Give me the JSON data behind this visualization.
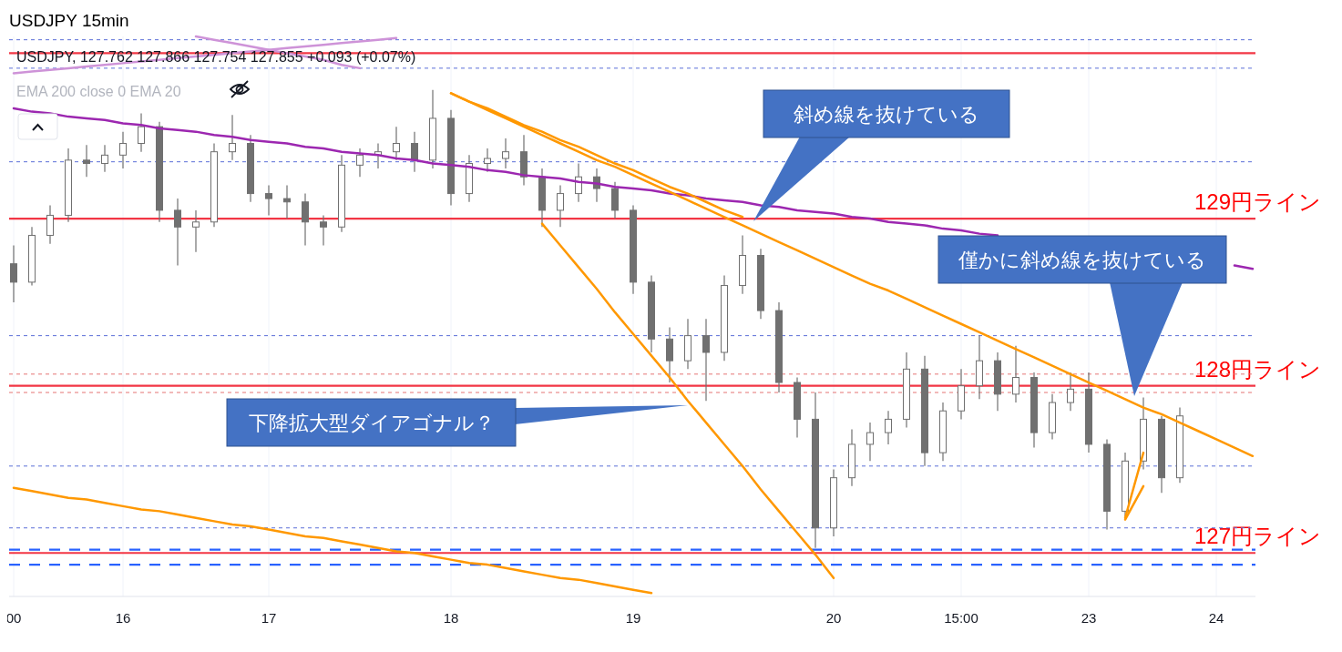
{
  "chart_data": {
    "type": "candlestick",
    "title": "USDJPY 15min",
    "subtitle": "USDJPY, 127.762 127.866 127.754 127.855 +0.093 (+0.07%)",
    "color": "#707070",
    "categories": [
      "00",
      null,
      null,
      null,
      null,
      null,
      "16",
      null,
      null,
      null,
      null,
      null,
      null,
      null,
      "17",
      null,
      null,
      null,
      null,
      null,
      null,
      null,
      null,
      null,
      "18",
      null,
      null,
      null,
      null,
      null,
      null,
      null,
      null,
      null,
      "19",
      null,
      null,
      null,
      null,
      null,
      null,
      null,
      null,
      null,
      null,
      "20",
      null,
      null,
      null,
      null,
      null,
      null,
      "15:00",
      null,
      null,
      null,
      null,
      null,
      null,
      "23",
      null,
      null,
      null,
      null,
      null,
      null,
      "24",
      null,
      null
    ],
    "ohlc": [
      [
        128.73,
        128.84,
        128.5,
        128.62
      ],
      [
        128.62,
        128.95,
        128.6,
        128.9
      ],
      [
        128.9,
        129.08,
        128.85,
        129.02
      ],
      [
        129.02,
        129.42,
        128.98,
        129.35
      ],
      [
        129.35,
        129.44,
        129.25,
        129.33
      ],
      [
        129.33,
        129.44,
        129.28,
        129.38
      ],
      [
        129.38,
        129.52,
        129.3,
        129.45
      ],
      [
        129.45,
        129.63,
        129.4,
        129.55
      ],
      [
        129.55,
        129.58,
        128.98,
        129.05
      ],
      [
        129.05,
        129.12,
        128.72,
        128.95
      ],
      [
        128.95,
        129.05,
        128.8,
        128.98
      ],
      [
        128.98,
        129.45,
        128.95,
        129.4
      ],
      [
        129.4,
        129.62,
        129.35,
        129.45
      ],
      [
        129.45,
        129.5,
        129.1,
        129.15
      ],
      [
        129.15,
        129.2,
        129.02,
        129.12
      ],
      [
        129.12,
        129.2,
        129.0,
        129.1
      ],
      [
        129.1,
        129.15,
        128.84,
        128.98
      ],
      [
        128.98,
        129.02,
        128.84,
        128.95
      ],
      [
        128.95,
        129.38,
        128.92,
        129.32
      ],
      [
        129.32,
        129.42,
        129.25,
        129.38
      ],
      [
        129.38,
        129.45,
        129.3,
        129.4
      ],
      [
        129.4,
        129.55,
        129.35,
        129.45
      ],
      [
        129.45,
        129.52,
        129.28,
        129.35
      ],
      [
        129.35,
        129.77,
        129.3,
        129.6
      ],
      [
        129.6,
        129.65,
        129.08,
        129.15
      ],
      [
        129.15,
        129.38,
        129.1,
        129.33
      ],
      [
        129.33,
        129.42,
        129.28,
        129.36
      ],
      [
        129.36,
        129.48,
        129.3,
        129.4
      ],
      [
        129.4,
        129.5,
        129.2,
        129.25
      ],
      [
        129.25,
        129.3,
        128.95,
        129.05
      ],
      [
        129.05,
        129.2,
        128.95,
        129.15
      ],
      [
        129.15,
        129.33,
        129.1,
        129.25
      ],
      [
        129.25,
        129.3,
        129.1,
        129.18
      ],
      [
        129.18,
        129.22,
        129.0,
        129.05
      ],
      [
        129.05,
        129.08,
        128.55,
        128.62
      ],
      [
        128.62,
        128.66,
        128.2,
        128.28
      ],
      [
        128.28,
        128.35,
        128.02,
        128.15
      ],
      [
        128.15,
        128.4,
        128.1,
        128.3
      ],
      [
        128.3,
        128.4,
        127.91,
        128.2
      ],
      [
        128.2,
        128.66,
        128.15,
        128.6
      ],
      [
        128.6,
        128.9,
        128.55,
        128.78
      ],
      [
        128.78,
        128.82,
        128.4,
        128.45
      ],
      [
        128.45,
        128.5,
        127.96,
        128.02
      ],
      [
        128.02,
        128.05,
        127.69,
        127.8
      ],
      [
        127.8,
        127.96,
        127.03,
        127.15
      ],
      [
        127.15,
        127.5,
        127.1,
        127.45
      ],
      [
        127.45,
        127.74,
        127.4,
        127.65
      ],
      [
        127.65,
        127.78,
        127.55,
        127.72
      ],
      [
        127.72,
        127.85,
        127.65,
        127.8
      ],
      [
        127.8,
        128.2,
        127.75,
        128.1
      ],
      [
        128.1,
        128.18,
        127.52,
        127.6
      ],
      [
        127.6,
        127.9,
        127.55,
        127.85
      ],
      [
        127.85,
        128.1,
        127.8,
        128.0
      ],
      [
        128.0,
        128.3,
        127.92,
        128.15
      ],
      [
        128.15,
        128.2,
        127.85,
        127.95
      ],
      [
        127.95,
        128.24,
        127.9,
        128.05
      ],
      [
        128.05,
        128.08,
        127.63,
        127.72
      ],
      [
        127.72,
        127.95,
        127.68,
        127.9
      ],
      [
        127.9,
        128.08,
        127.85,
        127.98
      ],
      [
        127.98,
        128.08,
        127.6,
        127.65
      ],
      [
        127.65,
        127.68,
        127.14,
        127.25
      ],
      [
        127.25,
        127.6,
        127.22,
        127.55
      ],
      [
        127.55,
        127.93,
        127.5,
        127.8
      ],
      [
        127.8,
        127.82,
        127.36,
        127.45
      ],
      [
        127.45,
        127.87,
        127.42,
        127.82
      ],
      null,
      null,
      null,
      null
    ],
    "series": [
      {
        "type": "line",
        "color": "#9c27b0",
        "values": [
          129.66,
          129.64,
          129.63,
          129.61,
          129.6,
          129.59,
          129.57,
          129.56,
          129.54,
          129.53,
          129.52,
          129.5,
          129.49,
          129.47,
          129.46,
          129.45,
          129.43,
          129.42,
          129.4,
          129.39,
          129.38,
          129.36,
          129.35,
          129.33,
          129.32,
          129.31,
          129.29,
          129.28,
          129.26,
          129.25,
          129.24,
          129.22,
          129.21,
          129.19,
          129.18,
          129.17,
          129.15,
          129.14,
          129.12,
          129.11,
          129.1,
          129.08,
          129.07,
          129.05,
          129.04,
          129.03,
          129.01,
          129.0,
          128.98,
          128.97,
          128.96,
          128.94,
          128.93,
          128.91,
          128.9,
          null,
          null,
          null,
          null,
          null,
          null,
          null,
          null,
          null,
          null,
          null,
          null,
          128.72,
          128.7
        ]
      },
      {
        "type": "line",
        "color": "#ce93d8",
        "values": [
          129.87,
          129.88,
          129.89,
          129.9,
          129.91,
          129.92,
          129.93,
          129.94,
          129.95,
          129.96,
          129.97,
          129.98,
          129.99,
          130.0,
          130.01,
          130.02,
          130.03,
          130.04,
          130.05,
          130.06,
          130.07,
          130.08,
          null,
          null,
          null,
          null,
          null,
          null,
          null,
          null,
          null,
          null,
          null,
          null,
          null,
          null,
          null,
          null,
          null,
          null,
          null,
          null,
          null,
          null,
          null,
          null,
          null,
          null,
          null,
          null,
          null,
          null,
          null,
          null,
          null,
          null,
          null,
          null,
          null,
          null,
          null,
          null,
          null,
          null,
          null,
          null,
          null,
          null,
          null
        ]
      },
      {
        "type": "line",
        "color": "#ce93d8",
        "values": [
          null,
          null,
          null,
          null,
          null,
          null,
          null,
          null,
          null,
          null,
          130.09,
          130.07,
          130.05,
          130.03,
          130.01,
          129.99,
          129.97,
          129.95,
          129.92,
          129.9,
          null,
          null,
          null,
          null,
          null,
          null,
          null,
          null,
          null,
          null,
          null,
          null,
          null,
          null,
          null,
          null,
          null,
          null,
          null,
          null,
          null,
          null,
          null,
          null,
          null,
          null,
          null,
          null,
          null,
          null,
          null,
          null,
          null,
          null,
          null,
          null,
          null,
          null,
          null,
          null,
          null,
          null,
          null,
          null,
          null,
          null,
          null,
          null,
          null
        ]
      },
      {
        "type": "line",
        "color": "#ff9800",
        "values": [
          null,
          null,
          null,
          null,
          null,
          null,
          null,
          null,
          null,
          null,
          null,
          null,
          null,
          null,
          null,
          null,
          null,
          null,
          null,
          null,
          null,
          null,
          null,
          null,
          129.75,
          129.7,
          129.65,
          129.6,
          129.55,
          129.5,
          129.45,
          129.4,
          129.35,
          129.31,
          129.26,
          129.21,
          129.16,
          129.11,
          129.06,
          129.01,
          128.96,
          128.91,
          128.86,
          128.81,
          128.76,
          128.71,
          128.66,
          128.61,
          128.57,
          128.52,
          128.47,
          128.42,
          128.37,
          128.32,
          128.27,
          128.22,
          128.17,
          128.12,
          128.07,
          128.02,
          127.97,
          127.92,
          127.87,
          127.83,
          127.78,
          127.73,
          127.68,
          127.63,
          127.58
        ]
      },
      {
        "type": "line",
        "color": "#ff9800",
        "values": [
          null,
          null,
          null,
          null,
          null,
          null,
          null,
          null,
          null,
          null,
          null,
          null,
          null,
          null,
          null,
          null,
          null,
          null,
          null,
          null,
          null,
          null,
          null,
          null,
          129.75,
          129.7,
          129.66,
          129.61,
          129.56,
          129.52,
          129.47,
          129.43,
          129.38,
          129.33,
          129.29,
          129.24,
          129.19,
          129.15,
          129.1,
          129.05,
          129.01,
          null,
          null,
          null,
          null,
          null,
          null,
          null,
          null,
          null,
          null,
          null,
          null,
          null,
          null,
          null,
          null,
          null,
          null,
          null,
          null,
          null,
          null,
          null,
          null,
          null,
          null,
          null,
          null
        ]
      },
      {
        "type": "line",
        "color": "#ff9800",
        "values": [
          null,
          null,
          null,
          null,
          null,
          null,
          null,
          null,
          null,
          null,
          null,
          null,
          null,
          null,
          null,
          null,
          null,
          null,
          null,
          null,
          null,
          null,
          null,
          null,
          null,
          null,
          null,
          null,
          null,
          128.97,
          128.84,
          128.71,
          128.58,
          128.44,
          128.31,
          128.18,
          128.05,
          127.91,
          127.78,
          127.65,
          127.52,
          127.38,
          127.25,
          127.12,
          126.99,
          126.85,
          null,
          null,
          null,
          null,
          null,
          null,
          null,
          null,
          null,
          null,
          null,
          null,
          null,
          null,
          null,
          null,
          null,
          null,
          null,
          null,
          null,
          null,
          null
        ]
      },
      {
        "type": "line",
        "color": "#ff9800",
        "values": [
          127.39,
          127.37,
          127.35,
          127.33,
          127.32,
          127.3,
          127.28,
          127.26,
          127.25,
          127.23,
          127.21,
          127.19,
          127.17,
          127.16,
          127.14,
          127.12,
          127.1,
          127.09,
          127.07,
          127.05,
          127.03,
          127.01,
          127.0,
          126.98,
          126.96,
          126.94,
          126.93,
          126.91,
          126.89,
          126.87,
          126.85,
          126.84,
          126.82,
          126.8,
          126.78,
          126.76,
          null,
          null,
          null,
          null,
          null,
          null,
          null,
          null,
          null,
          null,
          null,
          null,
          null,
          null,
          null,
          null,
          null,
          null,
          null,
          null,
          null,
          null,
          null,
          null,
          null,
          null,
          null,
          null,
          null,
          null,
          null,
          null,
          null
        ]
      },
      {
        "type": "line",
        "color": "#ff9800",
        "values": [
          null,
          null,
          null,
          null,
          null,
          null,
          null,
          null,
          null,
          null,
          null,
          null,
          null,
          null,
          null,
          null,
          null,
          null,
          null,
          null,
          null,
          null,
          null,
          null,
          null,
          null,
          null,
          null,
          null,
          null,
          null,
          null,
          null,
          null,
          null,
          null,
          null,
          null,
          null,
          null,
          null,
          null,
          null,
          null,
          null,
          null,
          null,
          null,
          null,
          null,
          null,
          null,
          null,
          null,
          null,
          null,
          null,
          null,
          null,
          null,
          null,
          127.21,
          127.6,
          null,
          null,
          null,
          null,
          null,
          null
        ]
      },
      {
        "type": "line",
        "color": "#ff9800",
        "values": [
          null,
          null,
          null,
          null,
          null,
          null,
          null,
          null,
          null,
          null,
          null,
          null,
          null,
          null,
          null,
          null,
          null,
          null,
          null,
          null,
          null,
          null,
          null,
          null,
          null,
          null,
          null,
          null,
          null,
          null,
          null,
          null,
          null,
          null,
          null,
          null,
          null,
          null,
          null,
          null,
          null,
          null,
          null,
          null,
          null,
          null,
          null,
          null,
          null,
          null,
          null,
          null,
          null,
          null,
          null,
          null,
          null,
          null,
          null,
          null,
          null,
          127.2,
          127.4,
          null,
          null,
          null,
          null,
          null,
          null
        ]
      }
    ],
    "ref_lines": [
      {
        "axis": "y",
        "value": 129,
        "label": "129円ライン",
        "color": "#f23645"
      },
      {
        "axis": "y",
        "value": 128,
        "label": "128円ライン",
        "color": "#f23645"
      },
      {
        "axis": "y",
        "value": 127,
        "label": "127円ライン",
        "color": "#f23645"
      },
      {
        "axis": "y",
        "value": 129.99,
        "color": "#f23645"
      },
      {
        "axis": "y",
        "value": 130.07,
        "color": "#5b6fd8",
        "line_style": "dashed"
      },
      {
        "axis": "y",
        "value": 129.9,
        "color": "#5b6fd8",
        "line_style": "dashed"
      },
      {
        "axis": "y",
        "value": 129.34,
        "color": "#5b6fd8",
        "line_style": "dashed"
      },
      {
        "axis": "y",
        "value": 128.3,
        "color": "#5b6fd8",
        "line_style": "dashed"
      },
      {
        "axis": "y",
        "value": 128.07,
        "color": "#e57373",
        "line_style": "dashed"
      },
      {
        "axis": "y",
        "value": 127.96,
        "color": "#e57373",
        "line_style": "dashed"
      },
      {
        "axis": "y",
        "value": 127.52,
        "color": "#5b6fd8",
        "line_style": "dashed"
      },
      {
        "axis": "y",
        "value": 127.15,
        "color": "#5b6fd8",
        "line_style": "dashed"
      },
      {
        "axis": "y",
        "value": 127.02,
        "color": "#2962ff",
        "line_style": "dashed"
      },
      {
        "axis": "y",
        "value": 126.93,
        "color": "#2962ff",
        "line_style": "dashed"
      }
    ],
    "annotations": [
      "EMA 200 close 0 EMA 20",
      "斜め線を抜けている",
      "僅かに斜め線を抜けている",
      "下降拡大型ダイアゴナル？"
    ],
    "ylim": [
      126.74,
      130.09
    ],
    "tick_labels": "x",
    "grid": "x"
  }
}
